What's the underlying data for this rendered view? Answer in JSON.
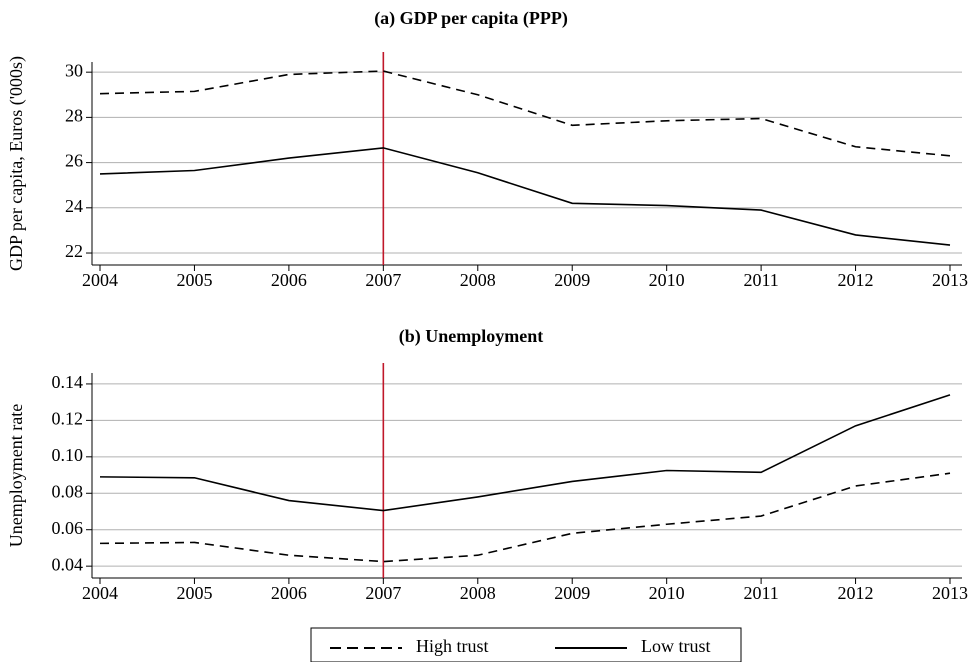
{
  "chart_data": [
    {
      "type": "line",
      "title": "(a) GDP per capita (PPP)",
      "y_label": "GDP per capita, Euros ('000s)",
      "x": [
        2004,
        2005,
        2006,
        2007,
        2008,
        2009,
        2010,
        2011,
        2012,
        2013
      ],
      "series": [
        {
          "name": "High trust",
          "color": "#000000",
          "dash": true,
          "values": [
            29.05,
            29.15,
            29.9,
            30.05,
            29.0,
            27.65,
            27.85,
            27.95,
            26.7,
            26.3
          ]
        },
        {
          "name": "Low trust",
          "color": "#000000",
          "dash": false,
          "values": [
            25.5,
            25.65,
            26.2,
            26.65,
            25.55,
            24.2,
            24.1,
            23.9,
            22.8,
            22.35
          ]
        }
      ],
      "xlim": [
        2004,
        2013
      ],
      "xticks": [
        2004,
        2005,
        2006,
        2007,
        2008,
        2009,
        2010,
        2011,
        2012,
        2013
      ],
      "ylim": [
        21.47,
        30.45
      ],
      "yticks": [
        22,
        24,
        26,
        28,
        30
      ],
      "grid": true,
      "vline": 2007,
      "vline_color": "#c0182a"
    },
    {
      "type": "line",
      "title": "(b) Unemployment",
      "y_label": "Unemployment rate",
      "x": [
        2004,
        2005,
        2006,
        2007,
        2008,
        2009,
        2010,
        2011,
        2012,
        2013
      ],
      "series": [
        {
          "name": "High trust",
          "color": "#000000",
          "dash": true,
          "values": [
            0.0525,
            0.053,
            0.046,
            0.0425,
            0.046,
            0.058,
            0.063,
            0.0675,
            0.084,
            0.091
          ]
        },
        {
          "name": "Low trust",
          "color": "#000000",
          "dash": false,
          "values": [
            0.089,
            0.0885,
            0.076,
            0.0705,
            0.078,
            0.0865,
            0.0925,
            0.0915,
            0.117,
            0.134
          ]
        }
      ],
      "xlim": [
        2004,
        2013
      ],
      "xticks": [
        2004,
        2005,
        2006,
        2007,
        2008,
        2009,
        2010,
        2011,
        2012,
        2013
      ],
      "ylim": [
        0.0335,
        0.146
      ],
      "yticks": [
        0.04,
        0.06,
        0.08,
        {
          "value": 0.1,
          "label": "0.10"
        },
        0.12,
        0.14
      ],
      "grid": true,
      "vline": 2007,
      "vline_color": "#c0182a"
    }
  ]
}
